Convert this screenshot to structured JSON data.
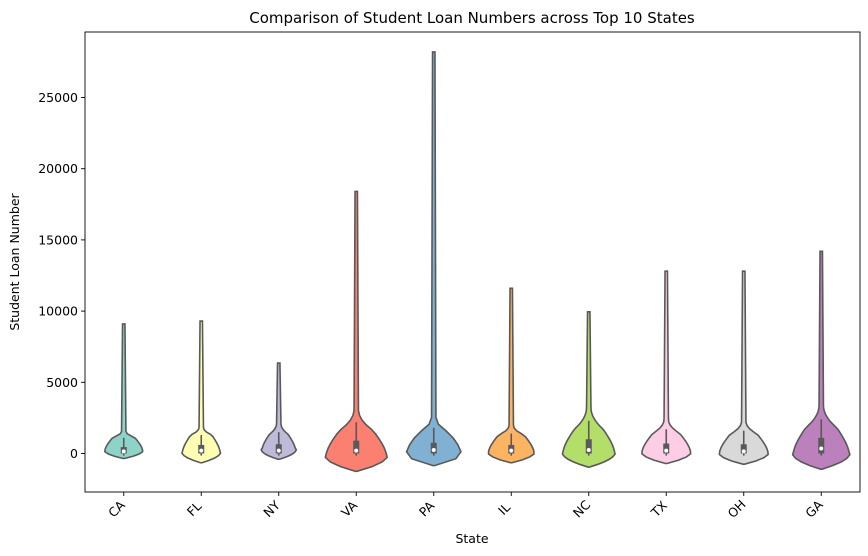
{
  "chart_data": {
    "type": "violin",
    "title": "Comparison of Student Loan Numbers across Top 10 States",
    "xlabel": "State",
    "ylabel": "Student Loan Number",
    "ylim": [
      -2700,
      29000
    ],
    "yticks": [
      0,
      5000,
      10000,
      15000,
      20000,
      25000
    ],
    "grid": false,
    "categories": [
      "CA",
      "FL",
      "NY",
      "VA",
      "PA",
      "IL",
      "NC",
      "TX",
      "OH",
      "GA"
    ],
    "series": [
      {
        "category": "CA",
        "color": "#8dd3c7",
        "min": -350,
        "max": 9100,
        "q1": 0,
        "median": 150,
        "q3": 450,
        "whisker_high": 1100
      },
      {
        "category": "FL",
        "color": "#ffffb3",
        "min": -650,
        "max": 9300,
        "q1": 0,
        "median": 200,
        "q3": 600,
        "whisker_high": 1300
      },
      {
        "category": "NY",
        "color": "#bebada",
        "min": -400,
        "max": 6350,
        "q1": 0,
        "median": 200,
        "q3": 650,
        "whisker_high": 1500
      },
      {
        "category": "VA",
        "color": "#fb8072",
        "min": -1250,
        "max": 18400,
        "q1": 0,
        "median": 200,
        "q3": 900,
        "whisker_high": 2200
      },
      {
        "category": "PA",
        "color": "#80b1d3",
        "min": -850,
        "max": 28200,
        "q1": 0,
        "median": 250,
        "q3": 750,
        "whisker_high": 1800
      },
      {
        "category": "IL",
        "color": "#fdb462",
        "min": -650,
        "max": 11600,
        "q1": 0,
        "median": 200,
        "q3": 600,
        "whisker_high": 1400
      },
      {
        "category": "NC",
        "color": "#b3de69",
        "min": -950,
        "max": 9950,
        "q1": 0,
        "median": 250,
        "q3": 1000,
        "whisker_high": 2300
      },
      {
        "category": "TX",
        "color": "#fccde5",
        "min": -700,
        "max": 12800,
        "q1": 0,
        "median": 200,
        "q3": 700,
        "whisker_high": 1700
      },
      {
        "category": "OH",
        "color": "#d9d9d9",
        "min": -750,
        "max": 12800,
        "q1": 0,
        "median": 150,
        "q3": 650,
        "whisker_high": 1600
      },
      {
        "category": "GA",
        "color": "#bc80bd",
        "min": -1100,
        "max": 14200,
        "q1": 0,
        "median": 350,
        "q3": 1100,
        "whisker_high": 2400
      }
    ]
  }
}
